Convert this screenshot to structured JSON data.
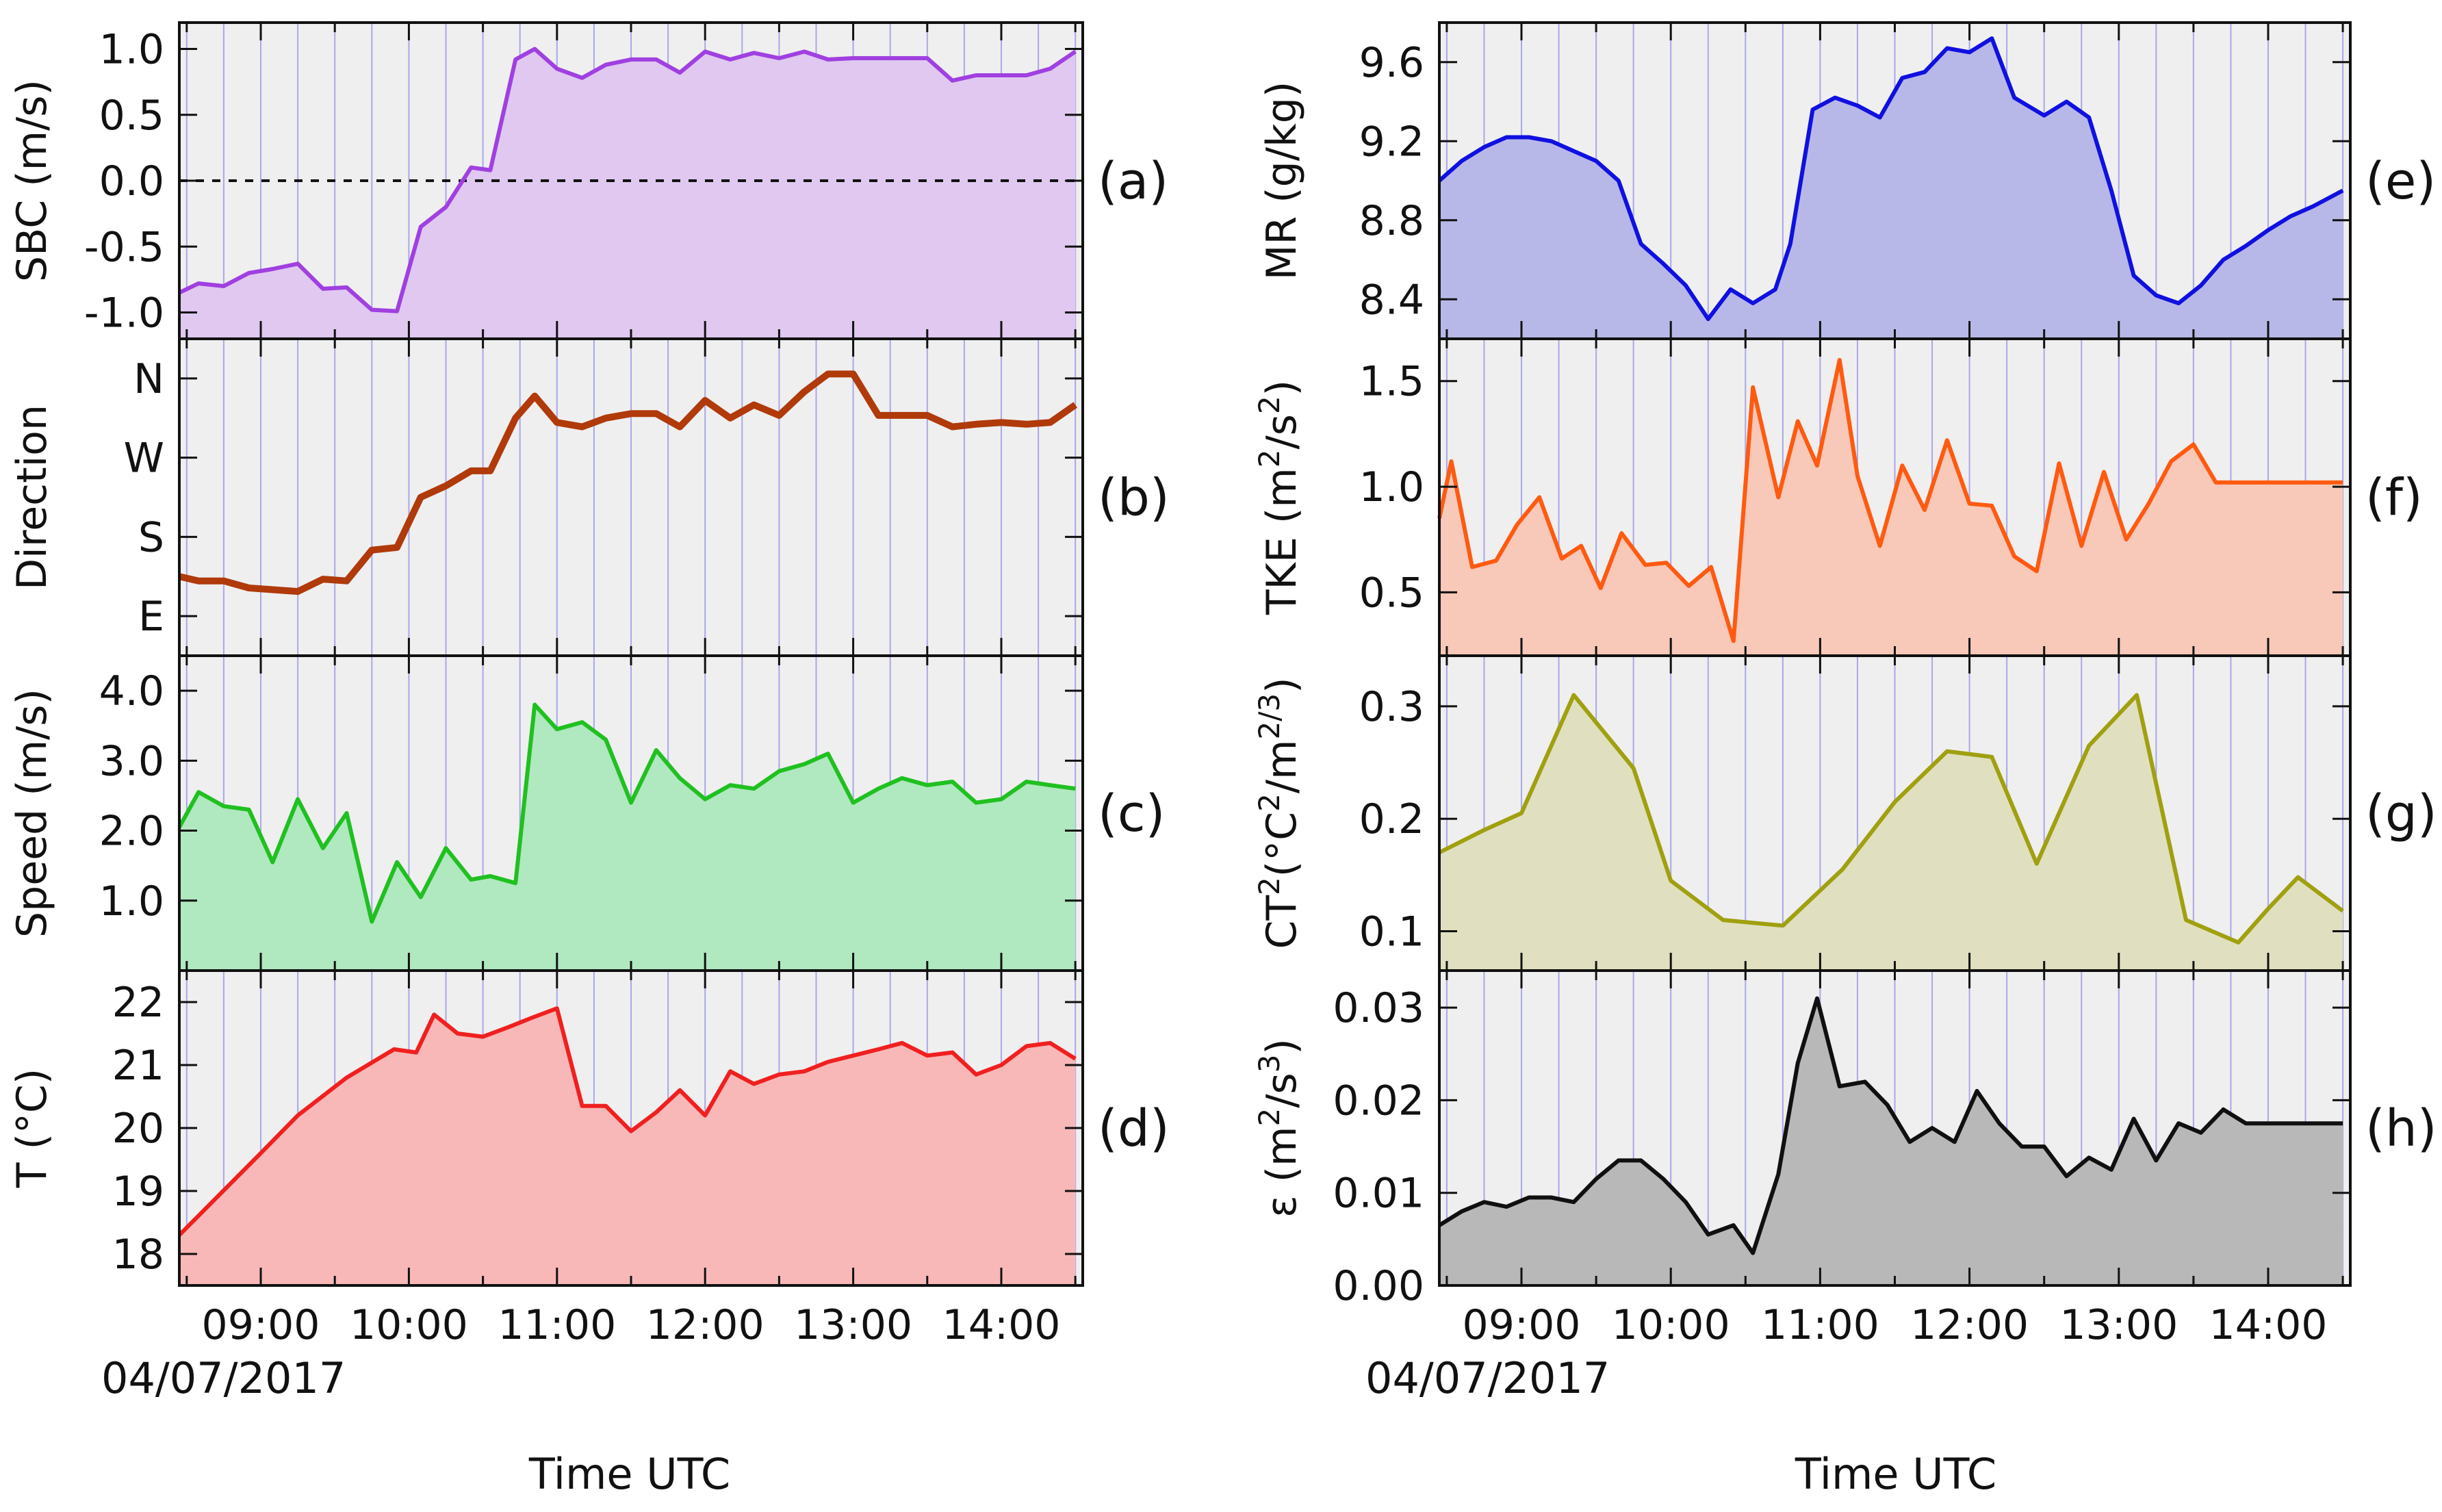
{
  "figure": {
    "date": "04/07/2017",
    "xlabel": "Time UTC"
  },
  "chart_data": [
    {
      "type": "area",
      "panel": "(a)",
      "column": "left",
      "ylabel": "SBC (m/s)",
      "color": "#a040e0",
      "fill": "#e0c8f0",
      "xticks": [
        "09:00",
        "10:00",
        "11:00",
        "12:00",
        "13:00",
        "14:00"
      ],
      "xlim": [
        8.45,
        14.55
      ],
      "ylim": [
        -1.2,
        1.2
      ],
      "yticks": [
        {
          "v": 1.0,
          "label": "1.0"
        },
        {
          "v": 0.5,
          "label": "0.5"
        },
        {
          "v": 0.0,
          "label": "0.0"
        },
        {
          "v": -0.5,
          "label": "-0.5"
        },
        {
          "v": -1.0,
          "label": "-1.0"
        }
      ],
      "zero_line": true,
      "x": [
        8.45,
        8.58,
        8.75,
        8.92,
        9.08,
        9.25,
        9.42,
        9.58,
        9.75,
        9.92,
        10.08,
        10.25,
        10.42,
        10.55,
        10.72,
        10.85,
        11.0,
        11.17,
        11.33,
        11.5,
        11.67,
        11.83,
        12.0,
        12.17,
        12.33,
        12.5,
        12.67,
        12.83,
        13.0,
        13.17,
        13.33,
        13.5,
        13.67,
        13.83,
        14.0,
        14.17,
        14.33,
        14.5
      ],
      "y": [
        -0.85,
        -0.78,
        -0.8,
        -0.7,
        -0.67,
        -0.63,
        -0.82,
        -0.81,
        -0.98,
        -0.99,
        -0.35,
        -0.2,
        0.1,
        0.08,
        0.92,
        1.0,
        0.85,
        0.78,
        0.88,
        0.92,
        0.92,
        0.82,
        0.98,
        0.92,
        0.97,
        0.93,
        0.98,
        0.92,
        0.93,
        0.93,
        0.93,
        0.93,
        0.76,
        0.8,
        0.8,
        0.8,
        0.85,
        0.98
      ]
    },
    {
      "type": "line",
      "panel": "(b)",
      "column": "left",
      "ylabel": "Direction",
      "color": "#b03a0a",
      "xticks": [
        "09:00",
        "10:00",
        "11:00",
        "12:00",
        "13:00",
        "14:00"
      ],
      "xlim": [
        8.45,
        14.55
      ],
      "ylim": [
        45,
        405
      ],
      "yticks": [
        {
          "v": 360,
          "label": "N"
        },
        {
          "v": 270,
          "label": "W"
        },
        {
          "v": 180,
          "label": "S"
        },
        {
          "v": 90,
          "label": "E"
        }
      ],
      "x": [
        8.45,
        8.58,
        8.75,
        8.92,
        9.08,
        9.25,
        9.42,
        9.58,
        9.75,
        9.92,
        10.08,
        10.25,
        10.42,
        10.55,
        10.72,
        10.85,
        11.0,
        11.17,
        11.33,
        11.5,
        11.67,
        11.83,
        12.0,
        12.17,
        12.33,
        12.5,
        12.67,
        12.83,
        13.0,
        13.17,
        13.33,
        13.5,
        13.67,
        13.83,
        14.0,
        14.17,
        14.33,
        14.5
      ],
      "y": [
        135,
        130,
        130,
        122,
        120,
        118,
        132,
        130,
        165,
        168,
        225,
        238,
        255,
        255,
        315,
        340,
        310,
        305,
        315,
        320,
        320,
        305,
        335,
        315,
        330,
        318,
        345,
        365,
        365,
        318,
        318,
        318,
        305,
        308,
        310,
        308,
        310,
        330
      ]
    },
    {
      "type": "area",
      "panel": "(c)",
      "column": "left",
      "ylabel": "Speed (m/s)",
      "color": "#20c020",
      "fill": "#b0e8c0",
      "xticks": [
        "09:00",
        "10:00",
        "11:00",
        "12:00",
        "13:00",
        "14:00"
      ],
      "xlim": [
        8.45,
        14.55
      ],
      "ylim": [
        0,
        4.5
      ],
      "yticks": [
        {
          "v": 4.0,
          "label": "4.0"
        },
        {
          "v": 3.0,
          "label": "3.0"
        },
        {
          "v": 2.0,
          "label": "2.0"
        },
        {
          "v": 1.0,
          "label": "1.0"
        }
      ],
      "x": [
        8.45,
        8.58,
        8.75,
        8.92,
        9.08,
        9.25,
        9.42,
        9.58,
        9.75,
        9.92,
        10.08,
        10.25,
        10.42,
        10.55,
        10.72,
        10.85,
        11.0,
        11.17,
        11.33,
        11.5,
        11.67,
        11.83,
        12.0,
        12.17,
        12.33,
        12.5,
        12.67,
        12.83,
        13.0,
        13.17,
        13.33,
        13.5,
        13.67,
        13.83,
        14.0,
        14.17,
        14.33,
        14.5
      ],
      "y": [
        2.05,
        2.55,
        2.35,
        2.3,
        1.55,
        2.45,
        1.75,
        2.25,
        0.7,
        1.55,
        1.05,
        1.75,
        1.3,
        1.35,
        1.25,
        3.8,
        3.45,
        3.55,
        3.3,
        2.4,
        3.15,
        2.75,
        2.45,
        2.65,
        2.6,
        2.85,
        2.95,
        3.1,
        2.4,
        2.6,
        2.75,
        2.65,
        2.7,
        2.4,
        2.45,
        2.7,
        2.65,
        2.6
      ]
    },
    {
      "type": "area",
      "panel": "(d)",
      "column": "left",
      "ylabel": "T (°C)",
      "color": "#f02020",
      "fill": "#f8b8b8",
      "xticks": [
        "09:00",
        "10:00",
        "11:00",
        "12:00",
        "13:00",
        "14:00"
      ],
      "xlim": [
        8.45,
        14.55
      ],
      "ylim": [
        17.5,
        22.5
      ],
      "yticks": [
        {
          "v": 22,
          "label": "22"
        },
        {
          "v": 21,
          "label": "21"
        },
        {
          "v": 20,
          "label": "20"
        },
        {
          "v": 19,
          "label": "19"
        },
        {
          "v": 18,
          "label": "18"
        }
      ],
      "x": [
        8.45,
        9.0,
        9.25,
        9.58,
        9.9,
        10.05,
        10.17,
        10.33,
        10.5,
        10.67,
        10.83,
        11.0,
        11.17,
        11.33,
        11.5,
        11.67,
        11.83,
        12.0,
        12.17,
        12.33,
        12.5,
        12.67,
        12.83,
        13.0,
        13.17,
        13.33,
        13.5,
        13.67,
        13.83,
        14.0,
        14.17,
        14.33,
        14.5
      ],
      "y": [
        18.3,
        19.6,
        20.2,
        20.8,
        21.25,
        21.2,
        21.8,
        21.5,
        21.45,
        21.6,
        21.75,
        21.9,
        20.35,
        20.35,
        19.95,
        20.25,
        20.6,
        20.2,
        20.9,
        20.7,
        20.85,
        20.9,
        21.05,
        21.15,
        21.25,
        21.35,
        21.15,
        21.2,
        20.85,
        21.0,
        21.3,
        21.35,
        21.1
      ]
    },
    {
      "type": "area",
      "panel": "(e)",
      "column": "right",
      "ylabel": "MR (g/kg)",
      "color": "#1010e0",
      "fill": "#b8b8e8",
      "xticks": [
        "09:00",
        "10:00",
        "11:00",
        "12:00",
        "13:00",
        "14:00"
      ],
      "xlim": [
        8.45,
        14.55
      ],
      "ylim": [
        8.2,
        9.8
      ],
      "yticks": [
        {
          "v": 9.6,
          "label": "9.6"
        },
        {
          "v": 9.2,
          "label": "9.2"
        },
        {
          "v": 8.8,
          "label": "8.8"
        },
        {
          "v": 8.4,
          "label": "8.4"
        }
      ],
      "x": [
        8.45,
        8.6,
        8.75,
        8.9,
        9.05,
        9.2,
        9.35,
        9.5,
        9.65,
        9.8,
        9.95,
        10.1,
        10.25,
        10.4,
        10.55,
        10.7,
        10.8,
        10.95,
        11.1,
        11.25,
        11.4,
        11.55,
        11.7,
        11.85,
        12.0,
        12.15,
        12.3,
        12.5,
        12.65,
        12.8,
        12.95,
        13.1,
        13.25,
        13.4,
        13.55,
        13.7,
        13.85,
        14.0,
        14.15,
        14.3,
        14.5
      ],
      "y": [
        9.0,
        9.1,
        9.17,
        9.22,
        9.22,
        9.2,
        9.15,
        9.1,
        9.0,
        8.68,
        8.58,
        8.47,
        8.3,
        8.45,
        8.38,
        8.45,
        8.68,
        9.36,
        9.42,
        9.38,
        9.32,
        9.52,
        9.55,
        9.67,
        9.65,
        9.72,
        9.42,
        9.33,
        9.4,
        9.32,
        8.95,
        8.52,
        8.42,
        8.38,
        8.47,
        8.6,
        8.67,
        8.75,
        8.82,
        8.87,
        8.95
      ]
    },
    {
      "type": "area",
      "panel": "(f)",
      "column": "right",
      "ylabel": "TKE (m2/s2)",
      "color": "#ff5a10",
      "fill": "#f8c8b8",
      "xticks": [
        "09:00",
        "10:00",
        "11:00",
        "12:00",
        "13:00",
        "14:00"
      ],
      "xlim": [
        8.45,
        14.55
      ],
      "ylim": [
        0.2,
        1.7
      ],
      "yticks": [
        {
          "v": 1.5,
          "label": "1.5"
        },
        {
          "v": 1.0,
          "label": "1.0"
        },
        {
          "v": 0.5,
          "label": "0.5"
        }
      ],
      "x": [
        8.45,
        8.53,
        8.67,
        8.83,
        8.97,
        9.12,
        9.27,
        9.4,
        9.53,
        9.67,
        9.83,
        9.97,
        10.12,
        10.27,
        10.42,
        10.55,
        10.72,
        10.85,
        10.98,
        11.13,
        11.25,
        11.4,
        11.55,
        11.7,
        11.85,
        12.0,
        12.15,
        12.3,
        12.45,
        12.6,
        12.75,
        12.9,
        13.05,
        13.2,
        13.35,
        13.5,
        13.65,
        13.8,
        13.95,
        14.1,
        14.25,
        14.4,
        14.5
      ],
      "y": [
        0.85,
        1.12,
        0.62,
        0.65,
        0.82,
        0.95,
        0.66,
        0.72,
        0.52,
        0.78,
        0.63,
        0.64,
        0.53,
        0.62,
        0.27,
        1.47,
        0.95,
        1.31,
        1.1,
        1.6,
        1.05,
        0.72,
        1.1,
        0.89,
        1.22,
        0.92,
        0.91,
        0.67,
        0.6,
        1.11,
        0.72,
        1.07,
        0.75,
        0.92,
        1.12,
        1.2,
        1.02,
        1.02,
        1.02,
        1.02,
        1.02,
        1.02,
        1.02
      ]
    },
    {
      "type": "area",
      "panel": "(g)",
      "column": "right",
      "ylabel": "CT2 (°C2/m2/3)",
      "color": "#a0a010",
      "fill": "#e0e0c0",
      "xticks": [
        "09:00",
        "10:00",
        "11:00",
        "12:00",
        "13:00",
        "14:00"
      ],
      "xlim": [
        8.45,
        14.55
      ],
      "ylim": [
        0.065,
        0.345
      ],
      "yticks": [
        {
          "v": 0.3,
          "label": "0.3"
        },
        {
          "v": 0.2,
          "label": "0.2"
        },
        {
          "v": 0.1,
          "label": "0.1"
        }
      ],
      "x": [
        8.45,
        8.75,
        9.0,
        9.35,
        9.75,
        10.0,
        10.35,
        10.75,
        11.15,
        11.5,
        11.85,
        12.15,
        12.45,
        12.8,
        13.12,
        13.45,
        13.8,
        14.0,
        14.2,
        14.5
      ],
      "y": [
        0.17,
        0.19,
        0.205,
        0.31,
        0.245,
        0.145,
        0.11,
        0.105,
        0.155,
        0.215,
        0.26,
        0.255,
        0.16,
        0.265,
        0.31,
        0.11,
        0.09,
        0.12,
        0.148,
        0.118
      ]
    },
    {
      "type": "area",
      "panel": "(h)",
      "column": "right",
      "ylabel": "ε (m2/s3)",
      "color": "#101010",
      "fill": "#b8b8b8",
      "xticks": [
        "09:00",
        "10:00",
        "11:00",
        "12:00",
        "13:00",
        "14:00"
      ],
      "xlim": [
        8.45,
        14.55
      ],
      "ylim": [
        0.0,
        0.034
      ],
      "yticks": [
        {
          "v": 0.03,
          "label": "0.03"
        },
        {
          "v": 0.02,
          "label": "0.02"
        },
        {
          "v": 0.01,
          "label": "0.01"
        },
        {
          "v": 0.0,
          "label": "0.00"
        }
      ],
      "x": [
        8.45,
        8.6,
        8.75,
        8.9,
        9.05,
        9.2,
        9.35,
        9.5,
        9.65,
        9.8,
        9.95,
        10.1,
        10.25,
        10.42,
        10.55,
        10.72,
        10.85,
        10.98,
        11.13,
        11.3,
        11.45,
        11.6,
        11.75,
        11.9,
        12.05,
        12.2,
        12.35,
        12.5,
        12.65,
        12.8,
        12.95,
        13.1,
        13.25,
        13.4,
        13.55,
        13.7,
        13.85,
        14.0,
        14.15,
        14.3,
        14.5
      ],
      "y": [
        0.0065,
        0.008,
        0.009,
        0.0085,
        0.0095,
        0.0095,
        0.009,
        0.0115,
        0.0135,
        0.0135,
        0.0115,
        0.009,
        0.0055,
        0.0065,
        0.0035,
        0.012,
        0.024,
        0.031,
        0.0215,
        0.022,
        0.0195,
        0.0155,
        0.017,
        0.0155,
        0.021,
        0.0175,
        0.015,
        0.015,
        0.0118,
        0.0138,
        0.0125,
        0.018,
        0.0135,
        0.0175,
        0.0165,
        0.019,
        0.0175,
        0.0175,
        0.0175,
        0.0175,
        0.0175
      ]
    }
  ]
}
